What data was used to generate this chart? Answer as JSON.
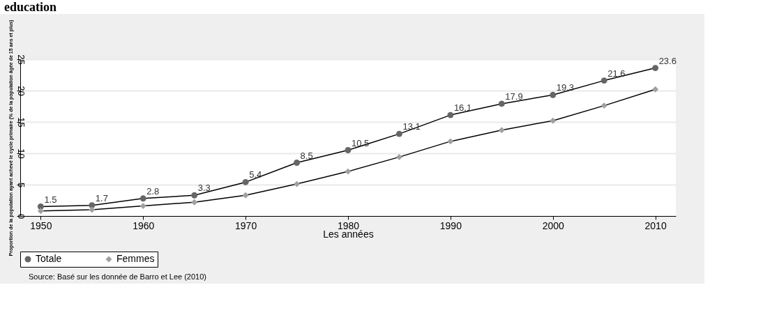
{
  "chart_data": {
    "type": "line",
    "title": "education",
    "xlabel": "Les années",
    "ylabel": "Proportion de la population ayant achevé le cycle primaire (% de la population âgée de 15 ans et plus)",
    "x": [
      1950,
      1955,
      1960,
      1965,
      1970,
      1975,
      1980,
      1985,
      1990,
      1995,
      2000,
      2005,
      2010
    ],
    "series": [
      {
        "name": "Totale",
        "color": "#666666",
        "marker": "circle",
        "values": [
          1.5,
          1.7,
          2.8,
          3.3,
          5.4,
          8.5,
          10.5,
          13.1,
          16.1,
          17.9,
          19.3,
          21.6,
          23.6
        ],
        "value_labels": [
          "1.5",
          "1.7",
          "2.8",
          "3.3",
          "5.4",
          "8.5",
          "10.5",
          "13.1",
          "16.1",
          "17.9",
          "19.3",
          "21.6",
          "23.6"
        ]
      },
      {
        "name": "Femmes",
        "color": "#a0a0a0",
        "marker": "diamond",
        "values": [
          0.8,
          1.0,
          1.6,
          2.2,
          3.3,
          5.1,
          7.1,
          9.4,
          11.9,
          13.7,
          15.2,
          17.6,
          20.2
        ]
      }
    ],
    "xlim": [
      1948,
      2012
    ],
    "xticks": [
      1950,
      1960,
      1970,
      1980,
      1990,
      2000,
      2010
    ],
    "ylim": [
      0,
      25
    ],
    "yticks": [
      0,
      5,
      10,
      15,
      20,
      25
    ],
    "grid": "y",
    "legend": "bottom",
    "annotations": [
      "Source: Basé sur les donnée de Barro et Lee (2010)"
    ]
  }
}
